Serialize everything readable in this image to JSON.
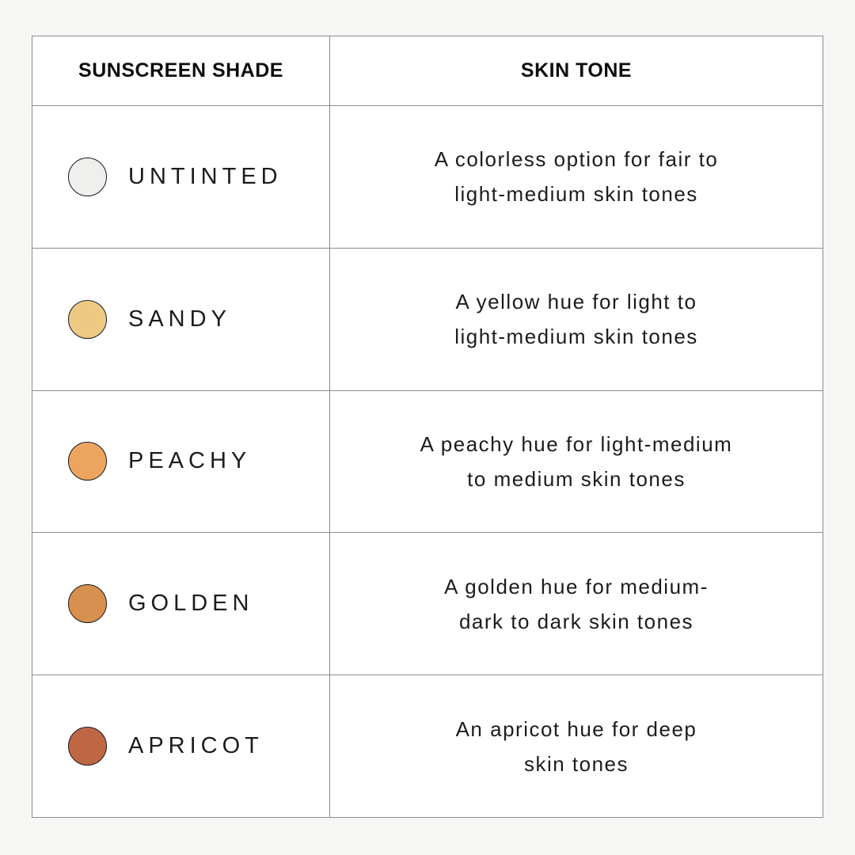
{
  "page": {
    "background_color": "#f6f6f5"
  },
  "table": {
    "grid_color": "#8c8c8c",
    "header_text_color": "#0d0d0d",
    "body_text_color": "#1c1c1c",
    "headers": [
      {
        "label": "SUNSCREEN SHADE"
      },
      {
        "label": "SKIN TONE"
      }
    ],
    "rows": [
      {
        "shade": "UNTINTED",
        "swatch_color": "#efefee",
        "swatch_border_color": "#1a1a1a",
        "description_line1": "A colorless option for fair to",
        "description_line2": "light-medium skin tones"
      },
      {
        "shade": "SANDY",
        "swatch_color": "#edc983",
        "swatch_border_color": "#1a1a1a",
        "description_line1": "A yellow hue for light to",
        "description_line2": "light-medium skin tones"
      },
      {
        "shade": "PEACHY",
        "swatch_color": "#eca55f",
        "swatch_border_color": "#1a1a1a",
        "description_line1": "A peachy hue for light-medium",
        "description_line2": "to medium skin tones"
      },
      {
        "shade": "GOLDEN",
        "swatch_color": "#d7904f",
        "swatch_border_color": "#1a1a1a",
        "description_line1": "A golden hue for medium-",
        "description_line2": "dark to dark skin tones"
      },
      {
        "shade": "APRICOT",
        "swatch_color": "#bf6645",
        "swatch_border_color": "#1a1a1a",
        "description_line1": "An apricot hue for deep",
        "description_line2": "skin tones"
      }
    ]
  },
  "chart_data": {
    "type": "table",
    "columns": [
      "SUNSCREEN SHADE",
      "SKIN TONE"
    ],
    "rows": [
      [
        "UNTINTED",
        "A colorless option for fair to light-medium skin tones"
      ],
      [
        "SANDY",
        "A yellow hue for light to light-medium skin tones"
      ],
      [
        "PEACHY",
        "A peachy hue for light-medium to medium skin tones"
      ],
      [
        "GOLDEN",
        "A golden hue for medium-dark to dark skin tones"
      ],
      [
        "APRICOT",
        "An apricot hue for deep skin tones"
      ]
    ],
    "swatch_colors": [
      "#efefee",
      "#edc983",
      "#eca55f",
      "#d7904f",
      "#bf6645"
    ],
    "layout": "2-column comparison table, header row on top, 5 data rows, grid lines on"
  }
}
